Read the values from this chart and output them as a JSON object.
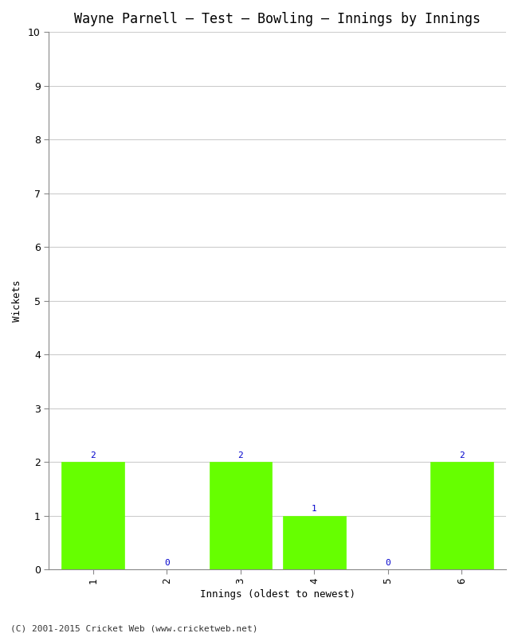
{
  "title": "Wayne Parnell – Test – Bowling – Innings by Innings",
  "xlabel": "Innings (oldest to newest)",
  "ylabel": "Wickets",
  "categories": [
    "1",
    "2",
    "3",
    "4",
    "5",
    "6"
  ],
  "values": [
    2,
    0,
    2,
    1,
    0,
    2
  ],
  "bar_color": "#66ff00",
  "bar_edge_color": "#66ff00",
  "label_color": "#0000cc",
  "ylim": [
    0,
    10
  ],
  "yticks": [
    0,
    1,
    2,
    3,
    4,
    5,
    6,
    7,
    8,
    9,
    10
  ],
  "background_color": "#ffffff",
  "plot_bg_color": "#ffffff",
  "grid_color": "#cccccc",
  "title_fontsize": 12,
  "axis_label_fontsize": 9,
  "tick_fontsize": 9,
  "bar_label_fontsize": 8,
  "footer_text": "(C) 2001-2015 Cricket Web (www.cricketweb.net)",
  "footer_fontsize": 8
}
